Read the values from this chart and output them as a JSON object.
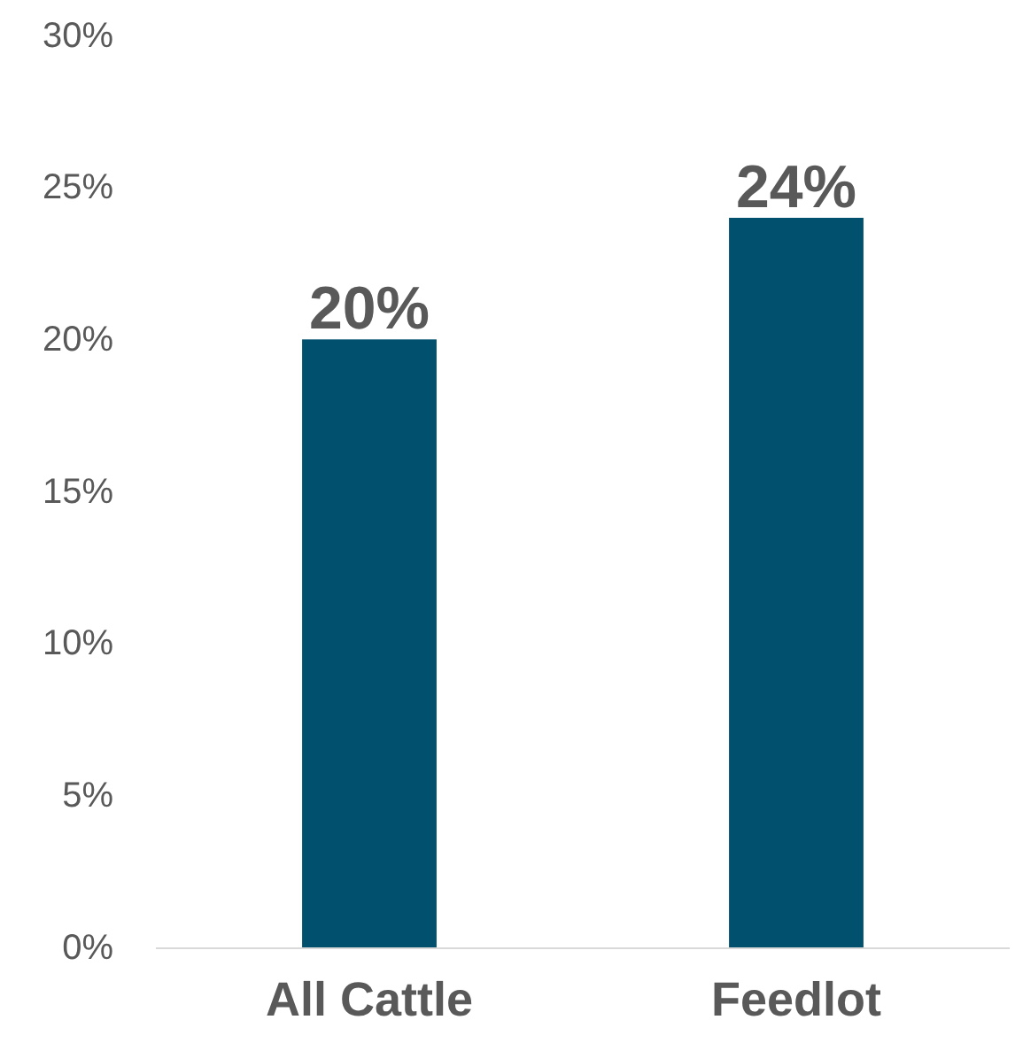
{
  "chart_data": {
    "type": "bar",
    "categories": [
      "All Cattle",
      "Feedlot"
    ],
    "values": [
      20,
      24
    ],
    "color": "#00506e",
    "value_labels": [
      "20%",
      "24%"
    ],
    "ylim": [
      0,
      30
    ],
    "yticks": [
      {
        "value": 0,
        "label": "0%"
      },
      {
        "value": 5,
        "label": "5%"
      },
      {
        "value": 10,
        "label": "10%"
      },
      {
        "value": 15,
        "label": "15%"
      },
      {
        "value": 20,
        "label": "20%"
      },
      {
        "value": 25,
        "label": "25%"
      },
      {
        "value": 30,
        "label": "30%"
      }
    ],
    "grid": false
  }
}
